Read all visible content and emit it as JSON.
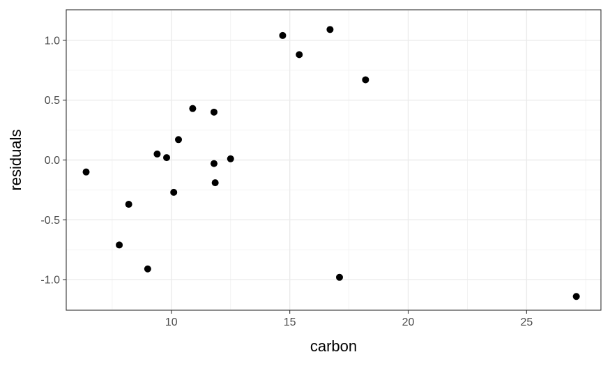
{
  "chart_data": {
    "type": "scatter",
    "title": "",
    "xlabel": "carbon",
    "ylabel": "residuals",
    "xlim": [
      5.56,
      28.14
    ],
    "ylim": [
      -1.255,
      1.255
    ],
    "x_ticks": [
      10,
      15,
      20,
      25
    ],
    "y_ticks": [
      1.0,
      0.5,
      0.0,
      -0.5,
      -1.0
    ],
    "x_tick_labels": [
      "10",
      "15",
      "20",
      "25"
    ],
    "y_tick_labels": [
      "1.0",
      "0.5",
      "0.0",
      "-0.5",
      "-1.0"
    ],
    "grid": true,
    "legend": "none",
    "point_color": "#000000",
    "points": [
      {
        "x": 6.4,
        "y": -0.1
      },
      {
        "x": 7.8,
        "y": -0.71
      },
      {
        "x": 8.2,
        "y": -0.37
      },
      {
        "x": 9.0,
        "y": -0.91
      },
      {
        "x": 9.4,
        "y": 0.05
      },
      {
        "x": 9.8,
        "y": 0.02
      },
      {
        "x": 10.1,
        "y": -0.27
      },
      {
        "x": 10.3,
        "y": 0.17
      },
      {
        "x": 10.9,
        "y": 0.43
      },
      {
        "x": 11.8,
        "y": 0.4
      },
      {
        "x": 11.8,
        "y": -0.03
      },
      {
        "x": 11.85,
        "y": -0.19
      },
      {
        "x": 12.5,
        "y": 0.01
      },
      {
        "x": 14.7,
        "y": 1.04
      },
      {
        "x": 15.4,
        "y": 0.88
      },
      {
        "x": 16.7,
        "y": 1.09
      },
      {
        "x": 17.1,
        "y": -0.98
      },
      {
        "x": 18.2,
        "y": 0.67
      },
      {
        "x": 27.1,
        "y": -1.14
      }
    ]
  }
}
